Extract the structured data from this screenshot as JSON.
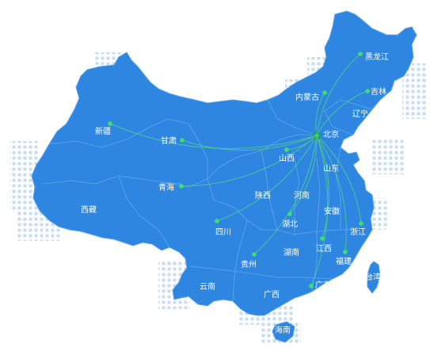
{
  "map": {
    "center": "北京",
    "colors": {
      "land": "#2e86e0",
      "border": "#7bb6f0",
      "flow_line": "#4fd08a",
      "point": "#3fe06a",
      "center_star": "#37d46b",
      "dots": "#c9def2",
      "label": "#ffffff"
    },
    "provinces": [
      {
        "key": "xinjiang",
        "name": "新疆",
        "has_point": true
      },
      {
        "key": "xizang",
        "name": "西藏",
        "has_point": false
      },
      {
        "key": "qinghai",
        "name": "青海",
        "has_point": true
      },
      {
        "key": "gansu",
        "name": "甘肃",
        "has_point": true
      },
      {
        "key": "neimenggu",
        "name": "内蒙古",
        "has_point": true
      },
      {
        "key": "heilongjiang",
        "name": "黑龙江",
        "has_point": true
      },
      {
        "key": "jilin",
        "name": "吉林",
        "has_point": true
      },
      {
        "key": "liaoning",
        "name": "辽宁",
        "has_point": false
      },
      {
        "key": "beijing",
        "name": "北京",
        "has_point": false
      },
      {
        "key": "shanxi",
        "name": "山西",
        "has_point": true
      },
      {
        "key": "shandong",
        "name": "山东",
        "has_point": false
      },
      {
        "key": "shaanxi",
        "name": "陕西",
        "has_point": false
      },
      {
        "key": "henan",
        "name": "河南",
        "has_point": false
      },
      {
        "key": "sichuan",
        "name": "四川",
        "has_point": true
      },
      {
        "key": "hubei",
        "name": "湖北",
        "has_point": true
      },
      {
        "key": "anhui",
        "name": "安徽",
        "has_point": false
      },
      {
        "key": "zhejiang",
        "name": "浙江",
        "has_point": true
      },
      {
        "key": "jiangxi",
        "name": "江西",
        "has_point": true
      },
      {
        "key": "guizhou",
        "name": "贵州",
        "has_point": true
      },
      {
        "key": "hunan",
        "name": "湖南",
        "has_point": false
      },
      {
        "key": "fujian",
        "name": "福建",
        "has_point": true
      },
      {
        "key": "yunnan",
        "name": "云南",
        "has_point": false
      },
      {
        "key": "guangxi",
        "name": "广西",
        "has_point": false
      },
      {
        "key": "guangdong",
        "name": "广东",
        "has_point": true
      },
      {
        "key": "taiwan",
        "name": "台湾",
        "has_point": false
      },
      {
        "key": "hainan",
        "name": "海南",
        "has_point": false
      }
    ]
  }
}
